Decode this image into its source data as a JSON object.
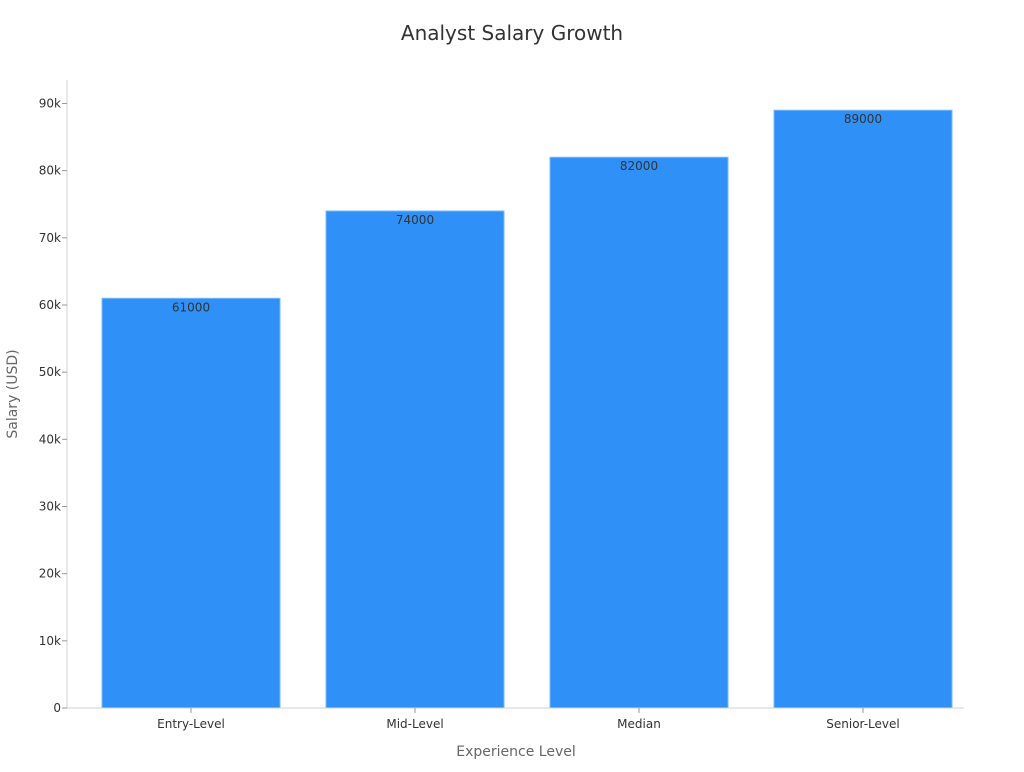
{
  "chart_data": {
    "type": "bar",
    "title": "Analyst Salary Growth",
    "xlabel": "Experience Level",
    "ylabel": "Salary (USD)",
    "categories": [
      "Entry-Level",
      "Mid-Level",
      "Median",
      "Senior-Level"
    ],
    "values": [
      61000,
      74000,
      82000,
      89000
    ],
    "data_labels": [
      "61000",
      "74000",
      "82000",
      "89000"
    ],
    "ylim": [
      0,
      93500
    ],
    "yticks": [
      0,
      10000,
      20000,
      30000,
      40000,
      50000,
      60000,
      70000,
      80000,
      90000
    ],
    "ytick_labels": [
      "0",
      "10k",
      "20k",
      "30k",
      "40k",
      "50k",
      "60k",
      "70k",
      "80k",
      "90k"
    ],
    "grid": false,
    "legend": "none",
    "colors": {
      "bar": "#2f91f8",
      "bar_edge": "#7ab8fa"
    }
  }
}
